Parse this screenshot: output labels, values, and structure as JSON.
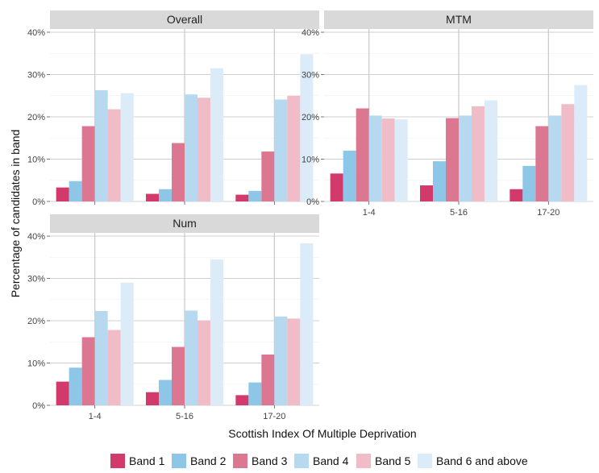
{
  "chart_data": {
    "type": "bar",
    "xlabel": "Scottish Index Of Multiple Deprivation",
    "ylabel": "Percentage of candidates in band",
    "ylim": [
      0,
      40
    ],
    "yticks": [
      "0%",
      "10%",
      "20%",
      "30%",
      "40%"
    ],
    "categories": [
      "1-4",
      "5-16",
      "17-20"
    ],
    "grid": true,
    "legend_position": "bottom",
    "series": [
      {
        "name": "Band 1",
        "color": "#d13a6b"
      },
      {
        "name": "Band 2",
        "color": "#8ec6e8"
      },
      {
        "name": "Band 3",
        "color": "#db7790"
      },
      {
        "name": "Band 4",
        "color": "#b7d9f0"
      },
      {
        "name": "Band 5",
        "color": "#efbcc7"
      },
      {
        "name": "Band 6 and above",
        "color": "#dcebf8"
      }
    ],
    "panels": [
      {
        "title": "Overall",
        "values": [
          [
            3.3,
            4.8,
            17.8,
            26.3,
            21.8,
            25.6
          ],
          [
            1.8,
            2.9,
            13.8,
            25.3,
            24.5,
            31.5
          ],
          [
            1.6,
            2.5,
            11.8,
            24.1,
            25.0,
            34.8
          ]
        ]
      },
      {
        "title": "MTM",
        "values": [
          [
            6.6,
            12.0,
            22.0,
            20.3,
            19.6,
            19.4
          ],
          [
            3.8,
            9.5,
            19.7,
            20.3,
            22.5,
            23.9
          ],
          [
            2.9,
            8.4,
            17.8,
            20.3,
            23.0,
            27.5
          ]
        ]
      },
      {
        "title": "Num",
        "values": [
          [
            5.6,
            8.9,
            16.1,
            22.3,
            17.8,
            29.0
          ],
          [
            3.1,
            6.0,
            13.8,
            22.4,
            20.0,
            34.5
          ],
          [
            2.4,
            5.4,
            12.0,
            21.0,
            20.5,
            38.3
          ]
        ]
      }
    ]
  }
}
